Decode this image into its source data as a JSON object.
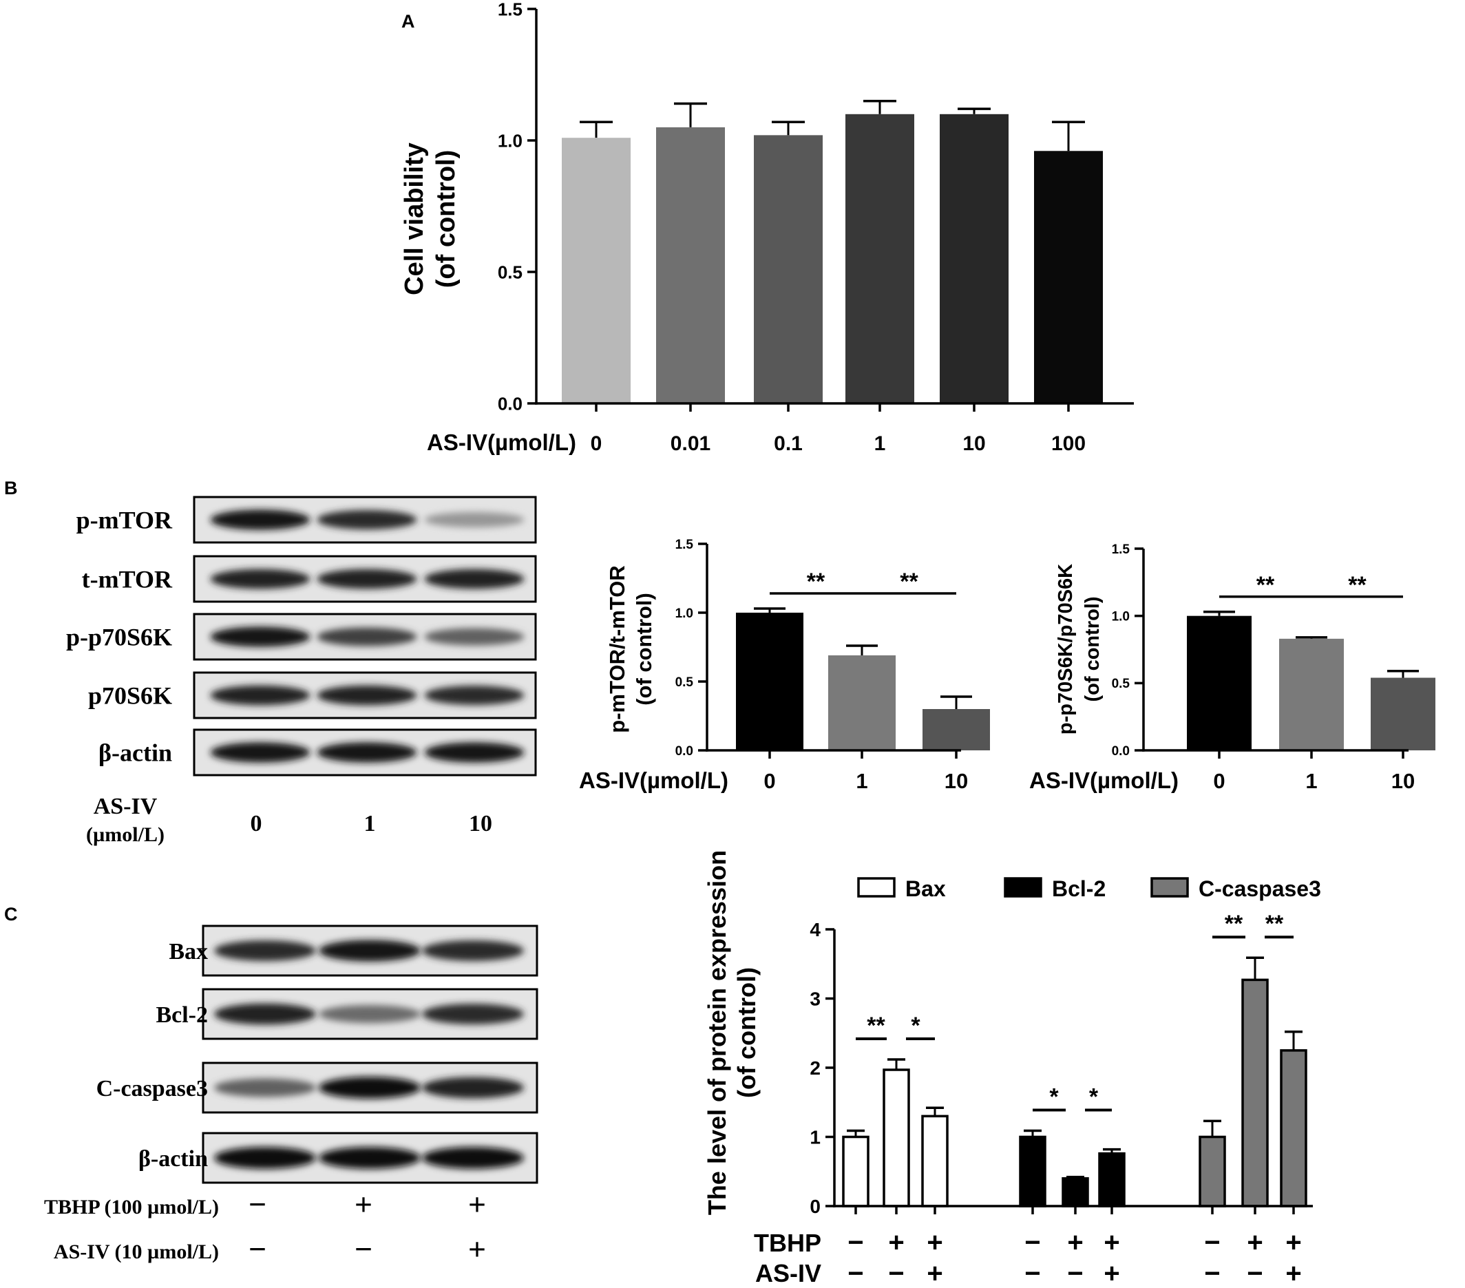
{
  "panels": {
    "A": "A",
    "B": "B",
    "C": "C"
  },
  "chart_data": [
    {
      "panel": "A",
      "type": "bar",
      "ylabel": [
        "Cell viability",
        "(of control)"
      ],
      "xlabel": "AS-IV(µmol/L)",
      "categories": [
        "0",
        "0.01",
        "0.1",
        "1",
        "10",
        "100"
      ],
      "values": [
        1.01,
        1.05,
        1.02,
        1.1,
        1.1,
        0.96
      ],
      "errors": [
        0.06,
        0.09,
        0.05,
        0.05,
        0.02,
        0.11
      ],
      "colors": [
        "#b8b8b8",
        "#707070",
        "#585858",
        "#383838",
        "#282828",
        "#0a0a0a"
      ],
      "ylim": [
        0,
        1.5
      ],
      "yticks": [
        "0.0",
        "0.5",
        "1.0",
        "1.5"
      ]
    },
    {
      "panel": "B1",
      "type": "bar",
      "ylabel": [
        "p-mTOR/t-mTOR",
        "(of control)"
      ],
      "xlabel": "AS-IV(µmol/L)",
      "categories": [
        "0",
        "1",
        "10"
      ],
      "values": [
        1.0,
        0.69,
        0.3
      ],
      "errors": [
        0.03,
        0.07,
        0.09
      ],
      "colors": [
        "#000000",
        "#7a7a7a",
        "#555555"
      ],
      "ylim": [
        0,
        1.5
      ],
      "yticks": [
        "0.0",
        "0.5",
        "1.0",
        "1.5"
      ],
      "significance": [
        {
          "from": 0,
          "to": 1,
          "label": "**"
        },
        {
          "from": 1,
          "to": 2,
          "label": "**"
        }
      ]
    },
    {
      "panel": "B2",
      "type": "bar",
      "ylabel": [
        "p-p70S6K/p70S6K",
        "(of control)"
      ],
      "xlabel": "AS-IV(µmol/L)",
      "categories": [
        "0",
        "1",
        "10"
      ],
      "values": [
        1.0,
        0.83,
        0.54
      ],
      "errors": [
        0.03,
        0.01,
        0.05
      ],
      "colors": [
        "#000000",
        "#7a7a7a",
        "#555555"
      ],
      "ylim": [
        0,
        1.5
      ],
      "yticks": [
        "0.0",
        "0.5",
        "1.0",
        "1.5"
      ],
      "significance": [
        {
          "from": 0,
          "to": 1,
          "label": "**"
        },
        {
          "from": 1,
          "to": 2,
          "label": "**"
        }
      ]
    },
    {
      "panel": "C",
      "type": "bar",
      "ylabel": [
        "The level of protein expression",
        "(of control)"
      ],
      "ylim": [
        0,
        4
      ],
      "yticks": [
        "0",
        "1",
        "2",
        "3",
        "4"
      ],
      "series": [
        {
          "name": "Bax",
          "values": [
            1.0,
            1.97,
            1.3
          ],
          "errors": [
            0.09,
            0.15,
            0.12
          ],
          "color": "#ffffff"
        },
        {
          "name": "Bcl-2",
          "values": [
            1.0,
            0.4,
            0.76
          ],
          "errors": [
            0.09,
            0.02,
            0.06
          ],
          "color": "#000000"
        },
        {
          "name": "C-caspase3",
          "values": [
            1.0,
            3.27,
            2.25
          ],
          "errors": [
            0.23,
            0.32,
            0.27
          ],
          "color": "#777777"
        }
      ],
      "row_labels": [
        "TBHP",
        "AS-IV"
      ],
      "conditions": [
        [
          "−",
          "+",
          "+"
        ],
        [
          "−",
          "−",
          "+"
        ]
      ],
      "significance": [
        {
          "series": 0,
          "from": 0,
          "to": 1,
          "label": "**"
        },
        {
          "series": 0,
          "from": 1,
          "to": 2,
          "label": "*"
        },
        {
          "series": 1,
          "from": 0,
          "to": 1,
          "label": "*"
        },
        {
          "series": 1,
          "from": 1,
          "to": 2,
          "label": "*"
        },
        {
          "series": 2,
          "from": 0,
          "to": 1,
          "label": "**"
        },
        {
          "series": 2,
          "from": 1,
          "to": 2,
          "label": "**"
        }
      ]
    }
  ],
  "blot_B": {
    "rows": [
      "p-mTOR",
      "t-mTOR",
      "p-p70S6K",
      "p70S6K",
      "β-actin"
    ],
    "lane_labels": [
      "0",
      "1",
      "10"
    ],
    "xlabel": [
      "AS-IV",
      "(µmol/L)"
    ],
    "band_intensity": [
      [
        0.95,
        0.85,
        0.35
      ],
      [
        0.9,
        0.9,
        0.9
      ],
      [
        0.95,
        0.75,
        0.6
      ],
      [
        0.9,
        0.9,
        0.85
      ],
      [
        0.95,
        0.95,
        0.95
      ]
    ]
  },
  "blot_C": {
    "rows": [
      "Bax",
      "Bcl-2",
      "C-caspase3",
      "β-actin"
    ],
    "conditions": [
      {
        "label": "TBHP (100 µmol/L)",
        "signs": [
          "−",
          "+",
          "+"
        ]
      },
      {
        "label": "AS-IV (10 µmol/L)",
        "signs": [
          "−",
          "−",
          "+"
        ]
      }
    ],
    "band_intensity": [
      [
        0.85,
        0.95,
        0.85
      ],
      [
        0.9,
        0.55,
        0.85
      ],
      [
        0.6,
        0.98,
        0.9
      ],
      [
        0.98,
        0.98,
        0.98
      ]
    ]
  }
}
